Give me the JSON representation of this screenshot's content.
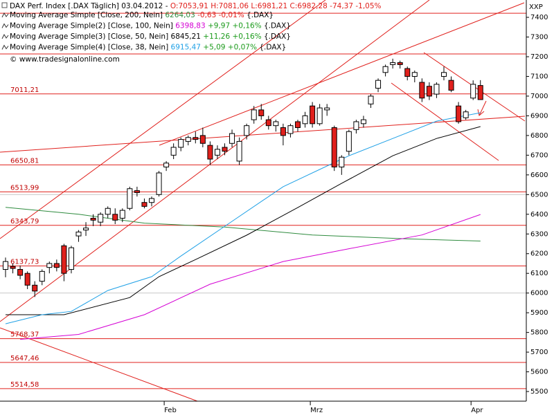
{
  "chart_data": {
    "type": "candlestick",
    "title": "DAX Perf. Index [.DAX  Täglich] 03.04.2012 -",
    "quote": "O:7053,91 H:7081,06 L:6981,21 C:6982,28 -74,37 -1,05%",
    "watermark": "© www.tradesignalonline.com",
    "y_unit": "XXP",
    "categories": [
      null,
      null,
      null,
      null,
      null,
      null,
      null,
      null,
      null,
      null,
      null,
      null,
      null,
      null,
      null,
      null,
      null,
      null,
      null,
      null,
      null,
      null,
      "Feb",
      null,
      null,
      null,
      null,
      null,
      null,
      null,
      null,
      null,
      null,
      null,
      null,
      null,
      null,
      null,
      null,
      null,
      null,
      null,
      "Mrz",
      null,
      null,
      null,
      null,
      null,
      null,
      null,
      null,
      null,
      null,
      null,
      null,
      null,
      null,
      null,
      null,
      null,
      null,
      null,
      null,
      null,
      "Apr",
      null
    ],
    "open": [
      6120,
      6135,
      6120,
      6100,
      6040,
      6060,
      6130,
      6150,
      6240,
      6120,
      6290,
      6320,
      6380,
      6360,
      6400,
      6400,
      6380,
      6430,
      6520,
      6460,
      6460,
      6500,
      6640,
      6700,
      6740,
      6770,
      6790,
      6800,
      6750,
      6700,
      6740,
      6760,
      6670,
      6800,
      6880,
      6930,
      6880,
      6850,
      6840,
      6810,
      6870,
      6860,
      6950,
      6860,
      6930,
      6840,
      6640,
      6720,
      6830,
      6860,
      6960,
      7040,
      7120,
      7160,
      7170,
      7140,
      7100,
      7070,
      7050,
      7010,
      7100,
      7080,
      6950,
      6890,
      6990,
      7053.91
    ],
    "high": [
      6180,
      6150,
      6140,
      6110,
      6060,
      6120,
      6160,
      6170,
      6250,
      6240,
      6320,
      6360,
      6400,
      6410,
      6440,
      6430,
      6430,
      6540,
      6540,
      6480,
      6490,
      6620,
      6670,
      6760,
      6790,
      6800,
      6820,
      6840,
      6770,
      6750,
      6760,
      6830,
      6790,
      6860,
      6950,
      6960,
      6900,
      6880,
      6860,
      6860,
      6880,
      6920,
      6970,
      6960,
      6960,
      6850,
      6700,
      6830,
      6880,
      6900,
      7010,
      7090,
      7160,
      7190,
      7180,
      7150,
      7130,
      7090,
      7070,
      7070,
      7150,
      7100,
      6970,
      6930,
      7080,
      7081.06
    ],
    "low": [
      6080,
      6100,
      6070,
      6020,
      5980,
      6040,
      6100,
      6110,
      6060,
      6100,
      6260,
      6290,
      6340,
      6340,
      6380,
      6350,
      6360,
      6420,
      6490,
      6430,
      6440,
      6490,
      6620,
      6680,
      6720,
      6750,
      6760,
      6740,
      6650,
      6680,
      6700,
      6740,
      6650,
      6780,
      6860,
      6880,
      6830,
      6820,
      6750,
      6790,
      6820,
      6840,
      6840,
      6850,
      6900,
      6620,
      6600,
      6700,
      6810,
      6840,
      6940,
      7020,
      7100,
      7140,
      7140,
      7080,
      7070,
      6970,
      6980,
      6990,
      7080,
      7020,
      6860,
      6880,
      6980,
      6981.21
    ],
    "close": [
      6160,
      6125,
      6090,
      6040,
      6010,
      6110,
      6150,
      6130,
      6100,
      6230,
      6310,
      6330,
      6370,
      6400,
      6430,
      6370,
      6420,
      6530,
      6510,
      6440,
      6480,
      6610,
      6660,
      6740,
      6780,
      6790,
      6780,
      6760,
      6680,
      6730,
      6720,
      6810,
      6770,
      6850,
      6930,
      6900,
      6850,
      6870,
      6800,
      6850,
      6840,
      6900,
      6860,
      6940,
      6940,
      6640,
      6690,
      6820,
      6870,
      6880,
      7000,
      7080,
      7150,
      7170,
      7160,
      7100,
      7120,
      6990,
      7000,
      7060,
      7120,
      7030,
      6870,
      6920,
      7060,
      6982.28
    ],
    "up_color": "#ffffff",
    "down_color": "#e0201c",
    "indicators": [
      {
        "name": "Moving Average Simple [Close, 200, Nein]",
        "last_label": "6264,03",
        "change": "-0,63 -0,01%",
        "ticker": "{.DAX}",
        "color": "#2e8b3e",
        "x": [
          0,
          10,
          19,
          30,
          42,
          55,
          65
        ],
        "values": [
          6435,
          6400,
          6355,
          6335,
          6295,
          6275,
          6264.03
        ]
      },
      {
        "name": "Moving Average Simple(2) [Close, 100, Nein]",
        "last_label": "6398,83",
        "change": "+9,97 +0,16%",
        "ticker": "{.DAX}",
        "color": "#d400d4",
        "x": [
          2,
          10,
          19,
          28,
          38,
          47,
          57,
          65
        ],
        "values": [
          5765,
          5790,
          5890,
          6045,
          6160,
          6225,
          6295,
          6398.83
        ]
      },
      {
        "name": "Moving Average Simple(3) [Close, 50, Nein]",
        "last_label": "6845,21",
        "change": "+11,26 +0,16%",
        "ticker": "{.DAX}",
        "color": "#000000",
        "x": [
          0,
          8,
          17,
          21,
          26,
          33,
          40,
          46,
          53,
          59,
          65
        ],
        "values": [
          5890,
          5890,
          5977,
          6083,
          6170,
          6294,
          6434,
          6557,
          6697,
          6785,
          6845.21
        ]
      },
      {
        "name": "Moving Average Simple(4) [Close, 38, Nein]",
        "last_label": "6915,47",
        "change": "+5,09 +0,07%",
        "ticker": "{.DAX}",
        "color": "#1ea0e6",
        "x": [
          0,
          5,
          9,
          14,
          20,
          24,
          31,
          38,
          44,
          47,
          53,
          59,
          65
        ],
        "values": [
          5844,
          5890,
          5907,
          6013,
          6083,
          6188,
          6364,
          6540,
          6645,
          6697,
          6785,
          6873,
          6915.47
        ]
      }
    ],
    "levels": [
      {
        "value": 7011.21,
        "label": "7011,21"
      },
      {
        "value": 6650.81,
        "label": "6650,81"
      },
      {
        "value": 6513.99,
        "label": "6513,99"
      },
      {
        "value": 6343.79,
        "label": "6343,79"
      },
      {
        "value": 6137.73,
        "label": "6137,73"
      },
      {
        "value": 5768.37,
        "label": "5768,37"
      },
      {
        "value": 5647.46,
        "label": "5647,46"
      },
      {
        "value": 5514.58,
        "label": "5514,58"
      }
    ],
    "extra_levels": [
      7421,
      7214
    ],
    "grid_values": [
      6000,
      6500
    ],
    "level_color": "#e0201c",
    "ylim": [
      5451,
      7488
    ],
    "yticks": [
      5500,
      5600,
      5700,
      5800,
      5900,
      6000,
      6100,
      6200,
      6300,
      6400,
      6500,
      6600,
      6700,
      6800,
      6900,
      7000,
      7100,
      7200,
      7300,
      7400
    ]
  }
}
